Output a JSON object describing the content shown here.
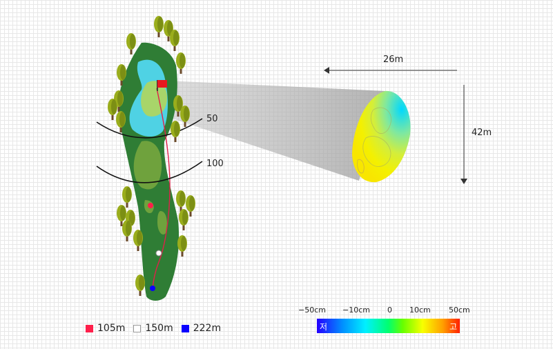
{
  "distance_markers": {
    "near": "50",
    "far": "100"
  },
  "green_dims": {
    "width": "26m",
    "depth": "42m"
  },
  "legend": [
    {
      "label": "105m",
      "color": "#ff1f4b"
    },
    {
      "label": "150m",
      "color": "#ffffff"
    },
    {
      "label": "222m",
      "color": "#0a00ff"
    }
  ],
  "color_scale": {
    "ticks": [
      "−50cm",
      "−10cm",
      "0",
      "10cm",
      "50cm"
    ],
    "low_label": "저",
    "high_label": "고"
  },
  "colors": {
    "rough": "#2f7d35",
    "fairway": "#6fa23d",
    "water": "#4fd2e4",
    "green": "#a8d56a",
    "flag": "#e8181f",
    "route": "#e0204a"
  }
}
